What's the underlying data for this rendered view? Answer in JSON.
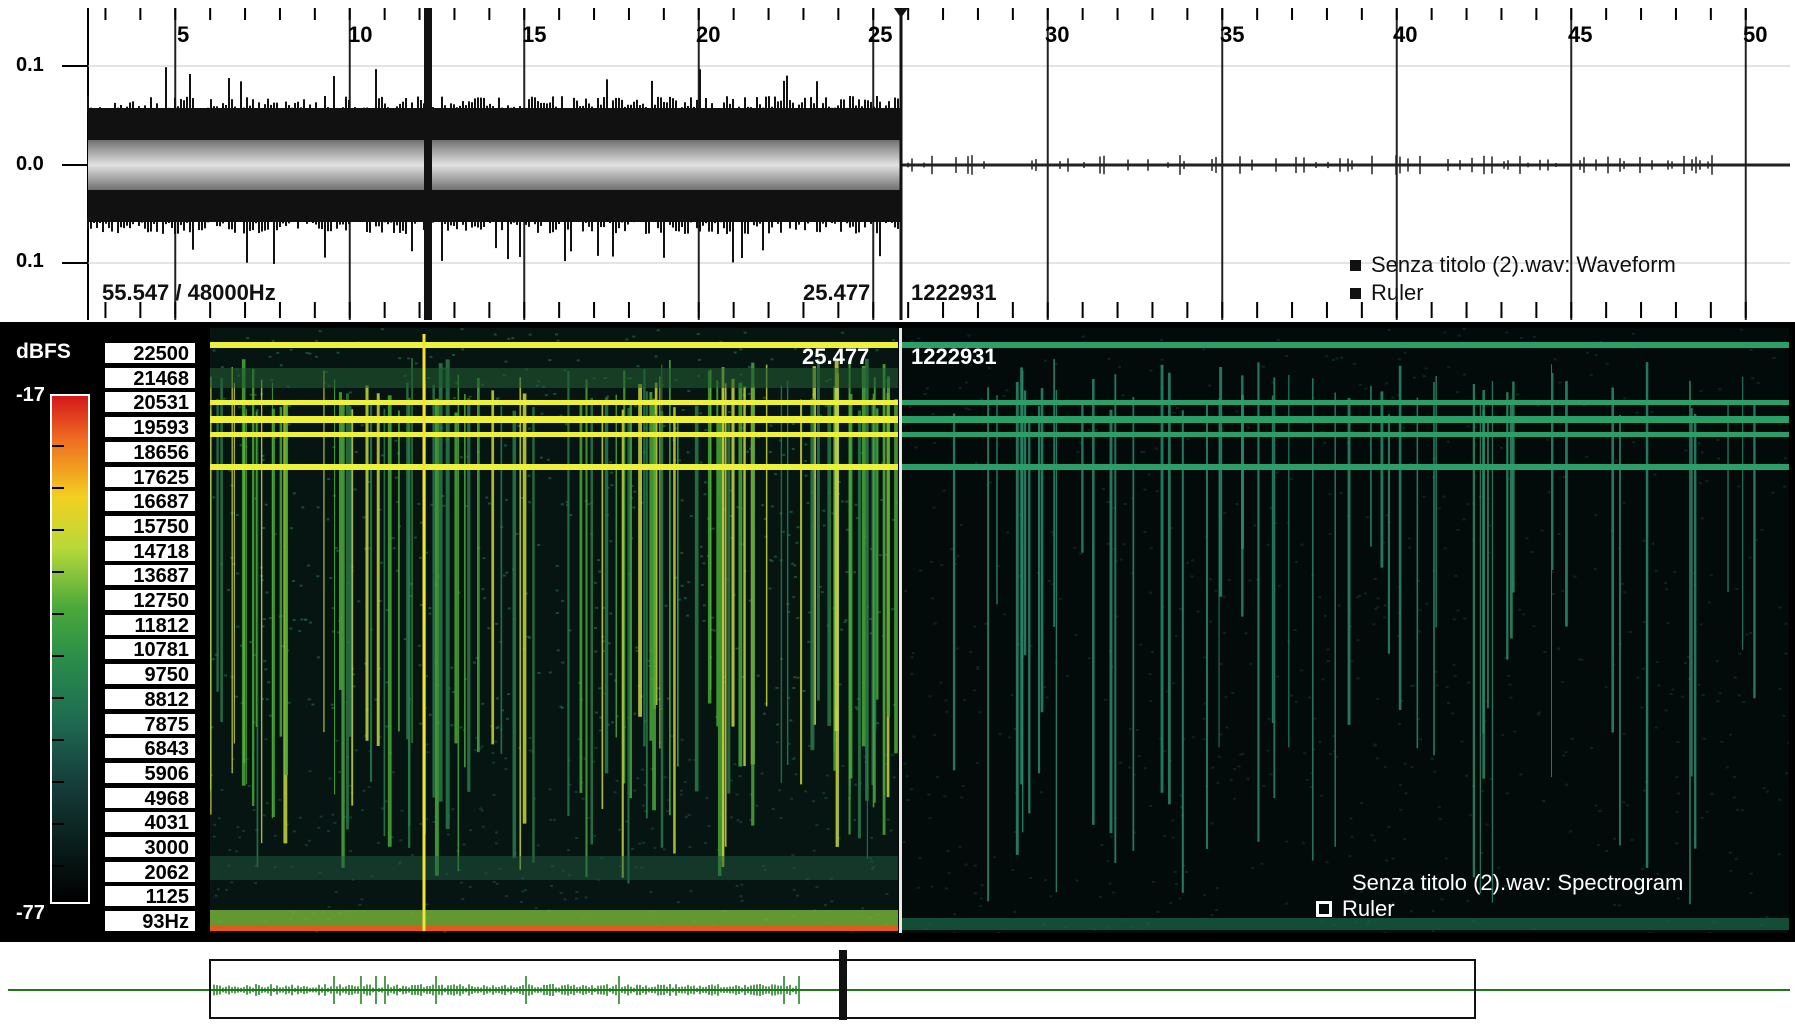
{
  "waveform": {
    "y_labels": [
      "0.1",
      "0.0",
      "0.1"
    ],
    "time_ticks": [
      "5",
      "10",
      "15",
      "20",
      "25",
      "30",
      "35",
      "40",
      "45",
      "50"
    ],
    "info_left": "55.547 / 48000Hz",
    "cursor_time": "25.477",
    "cursor_sample": "1222931",
    "legend": [
      {
        "label": "Senza titolo (2).wav: Waveform",
        "icon": "filled-square"
      },
      {
        "label": "Ruler",
        "icon": "filled-square"
      }
    ]
  },
  "spectrogram": {
    "db_unit": "dBFS",
    "db_max": "-17",
    "db_min": "-77",
    "freq_labels": [
      "22500",
      "21468",
      "20531",
      "19593",
      "18656",
      "17625",
      "16687",
      "15750",
      "14718",
      "13687",
      "12750",
      "11812",
      "10781",
      "9750",
      "8812",
      "7875",
      "6843",
      "5906",
      "4968",
      "4031",
      "3000",
      "2062",
      "1125",
      "93Hz"
    ],
    "cursor_time": "25.477",
    "cursor_sample": "1222931",
    "legend": [
      {
        "label": "Senza titolo (2).wav: Spectrogram",
        "icon": "none"
      },
      {
        "label": "Ruler",
        "icon": "hollow-square"
      }
    ],
    "colors": {
      "hot": "#d4181c",
      "mid": "#f2d020",
      "green": "#49a83a",
      "cold": "#000000"
    }
  },
  "overview": {
    "signal_color": "#1a7a1a"
  }
}
